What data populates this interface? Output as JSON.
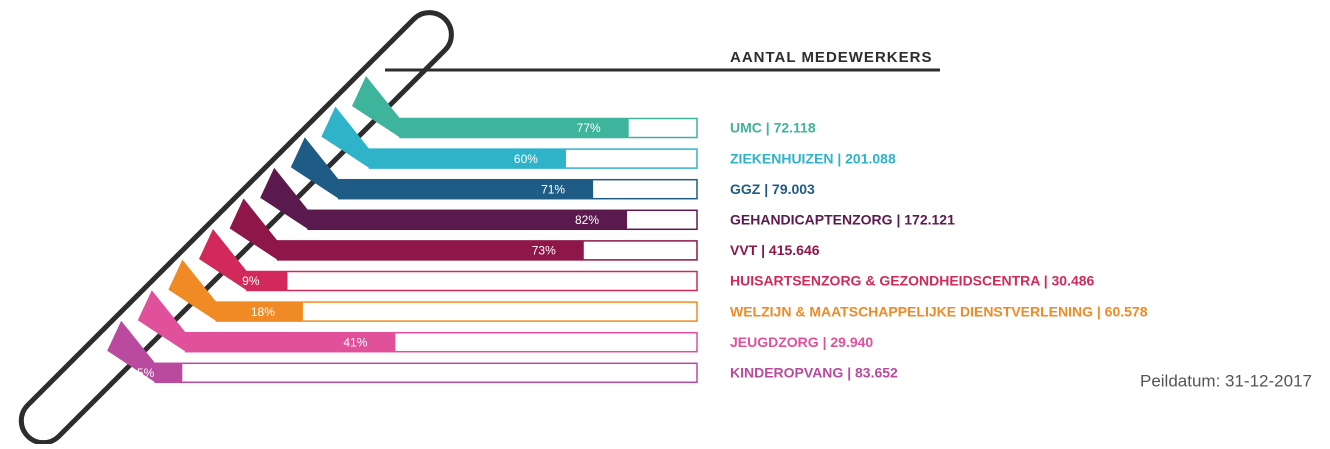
{
  "chart_data": {
    "type": "bar",
    "title": "AANTAL MEDEWERKERS",
    "categories": [
      "UMC | 72.118",
      "ZIEKENHUIZEN | 201.088",
      "GGZ | 79.003",
      "GEHANDICAPTENZORG | 172.121",
      "VVT | 415.646",
      "HUISARTSENZORG & GEZONDHEIDSCENTRA | 30.486",
      "WELZIJN & MAATSCHAPPELIJKE DIENSTVERLENING | 60.578",
      "JEUGDZORG | 29.940",
      "KINDEROPVANG | 83.652"
    ],
    "values": [
      77,
      60,
      71,
      82,
      73,
      9,
      18,
      41,
      5
    ],
    "value_labels": [
      "77%",
      "60%",
      "71%",
      "82%",
      "73%",
      "9%",
      "18%",
      "41%",
      "5%"
    ],
    "colors": [
      "#3fb49c",
      "#2fb3c9",
      "#1f5c85",
      "#5b1a4d",
      "#8e1648",
      "#d12a5a",
      "#f08a24",
      "#e0509b",
      "#b94a9e"
    ],
    "xlim": [
      0,
      100
    ],
    "footnote": "Peildatum: 31-12-2017"
  }
}
